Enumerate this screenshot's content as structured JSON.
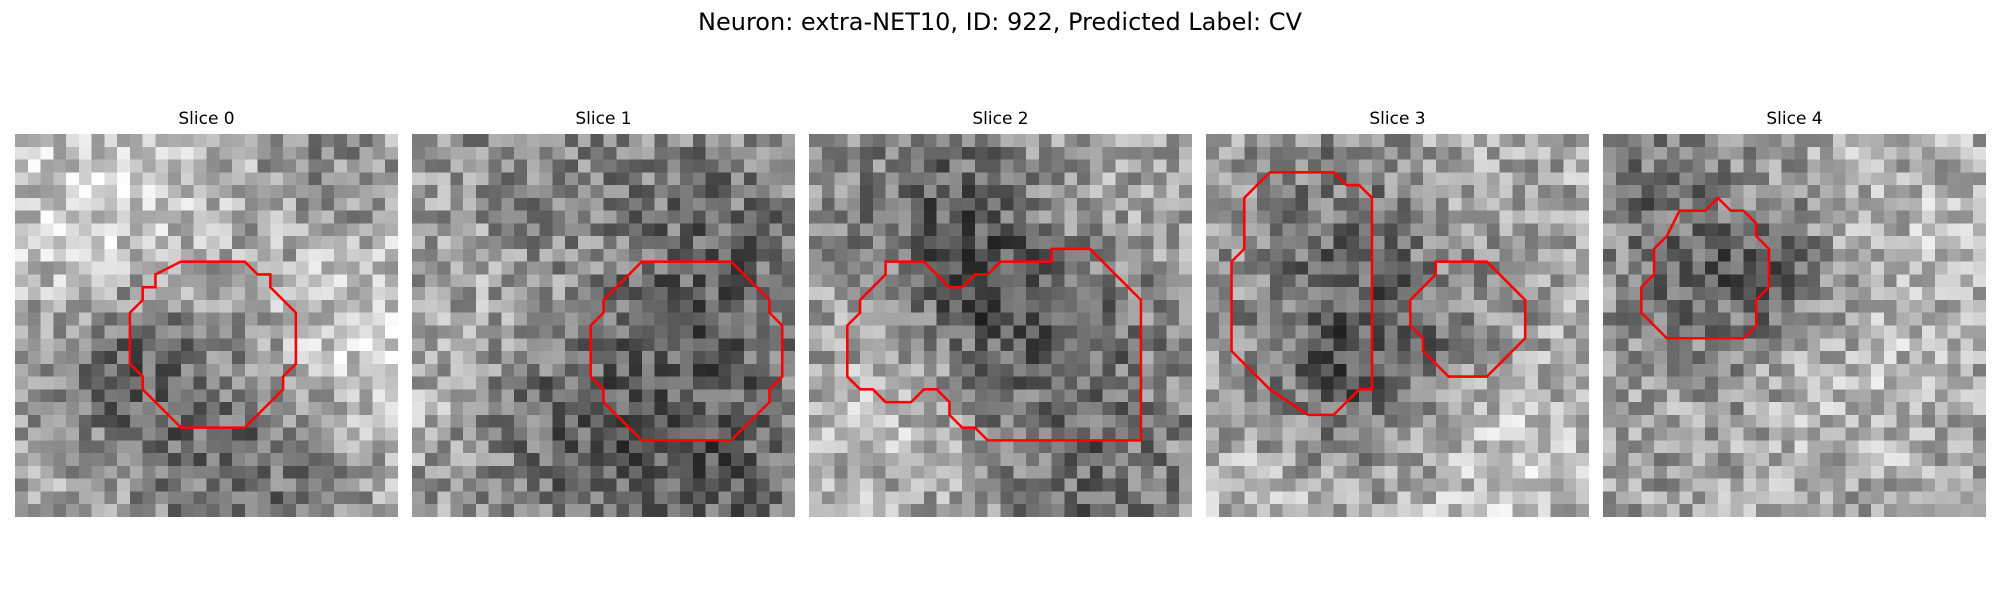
{
  "figure": {
    "suptitle": "Neuron: extra-NET10, ID: 922, Predicted Label: CV",
    "overlay_color": "#ff0000",
    "panels": [
      {
        "title": "Slice 0"
      },
      {
        "title": "Slice 1"
      },
      {
        "title": "Slice 2"
      },
      {
        "title": "Slice 3"
      },
      {
        "title": "Slice 4"
      }
    ]
  }
}
